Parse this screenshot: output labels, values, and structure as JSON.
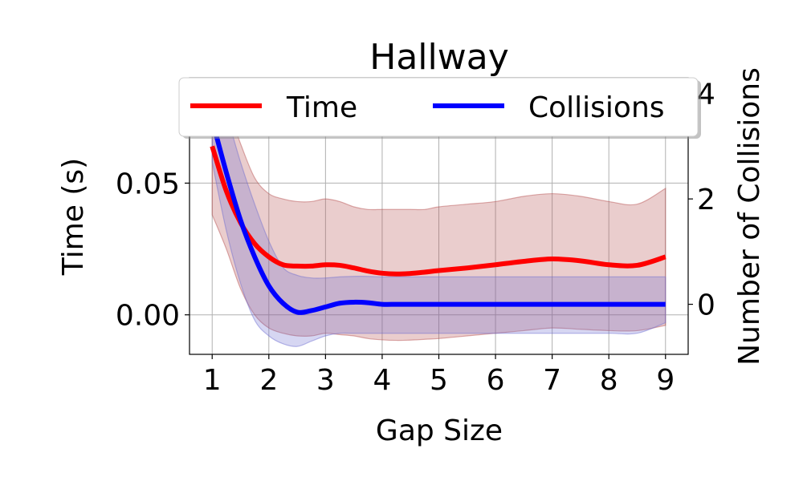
{
  "chart_data": {
    "type": "line",
    "title": "Hallway",
    "xlabel": "Gap Size",
    "ylabel_left": "Time (s)",
    "ylabel_right": "Number of Collisions",
    "xlim": [
      0.6,
      9.4
    ],
    "ylim_left": [
      -0.015,
      0.09
    ],
    "ylim_right": [
      -0.95,
      4.3
    ],
    "x_ticks": [
      1,
      2,
      3,
      4,
      5,
      6,
      7,
      8,
      9
    ],
    "x_tick_labels": [
      "1",
      "2",
      "3",
      "4",
      "5",
      "6",
      "7",
      "8",
      "9"
    ],
    "y_left_ticks": [
      0.0,
      0.05
    ],
    "y_left_tick_labels": [
      "0.00",
      "0.05"
    ],
    "y_right_ticks": [
      0,
      2,
      4
    ],
    "y_right_tick_labels": [
      "0",
      "2",
      "4"
    ],
    "grid": true,
    "legend_placement": "top",
    "series": [
      {
        "name": "Time",
        "axis": "left",
        "color": "#ff0000",
        "band_color": "#b34a4a",
        "x": [
          1.0,
          1.25,
          1.5,
          1.75,
          2.0,
          2.25,
          2.5,
          2.75,
          3.0,
          3.25,
          3.5,
          3.75,
          4.0,
          4.25,
          4.5,
          4.75,
          5.0,
          5.5,
          6.0,
          6.5,
          7.0,
          7.5,
          8.0,
          8.5,
          9.0
        ],
        "values": [
          0.064,
          0.047,
          0.035,
          0.027,
          0.022,
          0.019,
          0.0185,
          0.0185,
          0.019,
          0.0188,
          0.0178,
          0.0166,
          0.0158,
          0.0155,
          0.0157,
          0.0162,
          0.0168,
          0.0178,
          0.019,
          0.0203,
          0.0212,
          0.0205,
          0.019,
          0.0188,
          0.022
        ],
        "upper": [
          0.09,
          0.08,
          0.065,
          0.052,
          0.046,
          0.044,
          0.043,
          0.043,
          0.044,
          0.043,
          0.041,
          0.04,
          0.04,
          0.04,
          0.04,
          0.04,
          0.041,
          0.042,
          0.043,
          0.045,
          0.046,
          0.045,
          0.043,
          0.042,
          0.048
        ],
        "lower": [
          0.038,
          0.025,
          0.01,
          0.0,
          -0.005,
          -0.007,
          -0.008,
          -0.008,
          -0.007,
          -0.0075,
          -0.008,
          -0.009,
          -0.0095,
          -0.0097,
          -0.0096,
          -0.0093,
          -0.009,
          -0.008,
          -0.007,
          -0.006,
          -0.005,
          -0.0055,
          -0.006,
          -0.006,
          -0.004
        ]
      },
      {
        "name": "Collisions",
        "axis": "right",
        "color": "#0000ff",
        "band_color": "#6a6ad0",
        "x": [
          1.0,
          1.25,
          1.5,
          1.75,
          2.0,
          2.25,
          2.5,
          2.75,
          3.0,
          3.25,
          3.5,
          3.75,
          4.0,
          4.25,
          4.5,
          5.0,
          5.5,
          6.0,
          6.5,
          7.0,
          7.5,
          8.0,
          8.5,
          9.0
        ],
        "values": [
          3.5,
          2.5,
          1.6,
          0.9,
          0.35,
          0.02,
          -0.15,
          -0.12,
          -0.05,
          0.02,
          0.04,
          0.03,
          0.0,
          0.0,
          0.0,
          0.0,
          0.0,
          0.0,
          0.0,
          0.0,
          0.0,
          0.0,
          0.0,
          0.0
        ],
        "upper": [
          4.3,
          3.6,
          2.7,
          1.9,
          1.2,
          0.7,
          0.55,
          0.5,
          0.5,
          0.52,
          0.53,
          0.53,
          0.52,
          0.52,
          0.52,
          0.52,
          0.52,
          0.52,
          0.52,
          0.52,
          0.52,
          0.52,
          0.52,
          0.52
        ],
        "lower": [
          2.7,
          1.4,
          0.4,
          -0.3,
          -0.6,
          -0.75,
          -0.8,
          -0.7,
          -0.6,
          -0.55,
          -0.55,
          -0.55,
          -0.55,
          -0.55,
          -0.55,
          -0.55,
          -0.55,
          -0.55,
          -0.55,
          -0.55,
          -0.55,
          -0.55,
          -0.55,
          -0.35
        ]
      }
    ]
  }
}
